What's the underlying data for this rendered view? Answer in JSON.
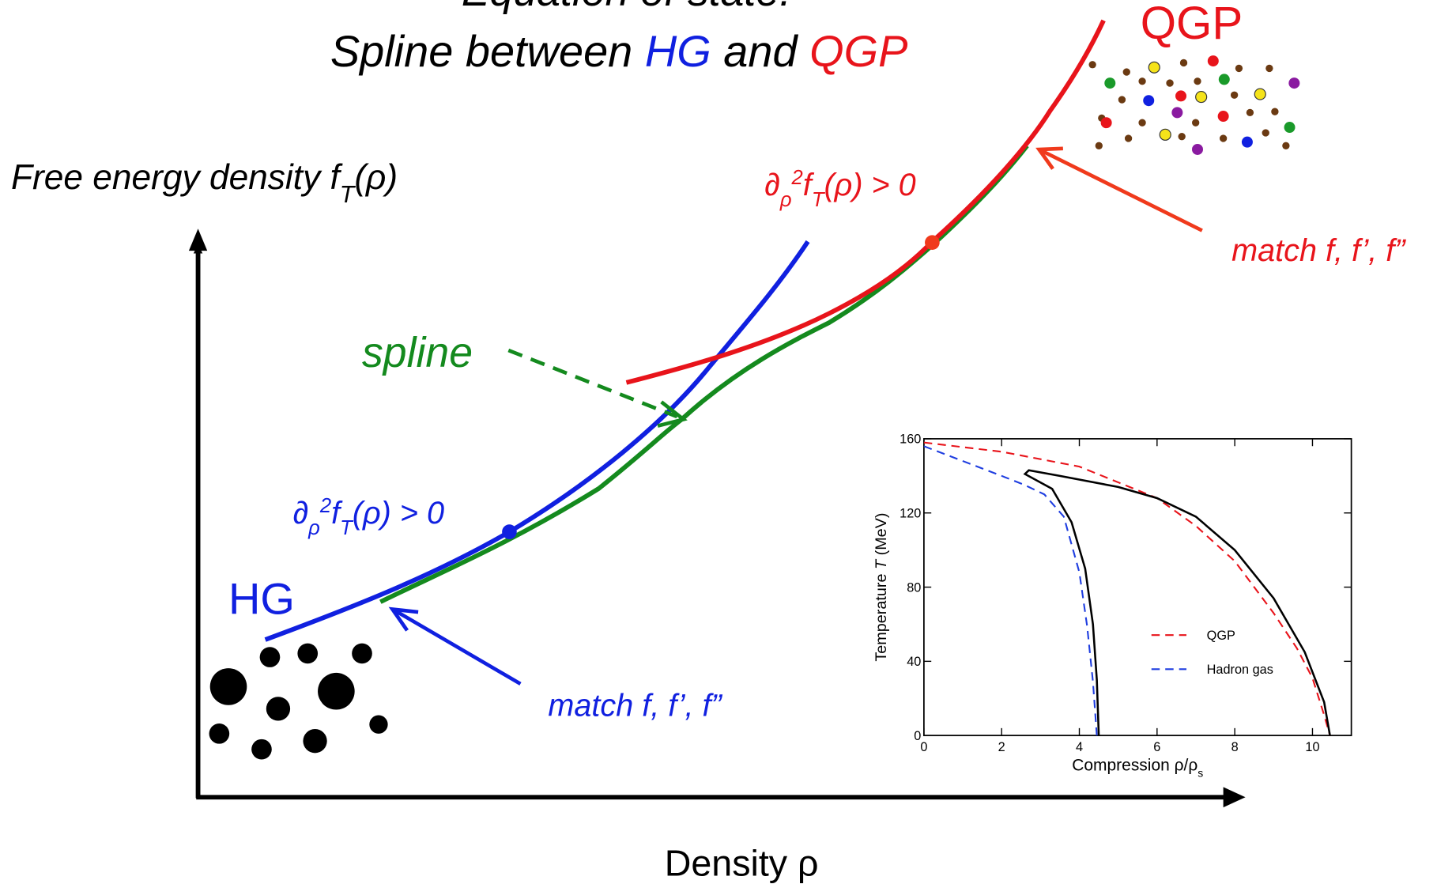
{
  "slide": {
    "title_line1": "Equation of state:",
    "title_line2": [
      "Spline between ",
      "HG",
      " and ",
      "QGP"
    ],
    "y_axis_label": [
      "Free energy density f",
      "T",
      "(ρ)"
    ],
    "x_axis_label": "Density ρ",
    "hg_label": "HG",
    "qgp_label": "QGP",
    "spline_label": "spline",
    "hg_condition": [
      "∂",
      "ρ",
      "2",
      "f",
      "T",
      "(ρ) > 0"
    ],
    "qgp_condition": [
      "∂",
      "ρ",
      "2",
      "f",
      "T",
      "(ρ) > 0"
    ],
    "hg_match": "match f, f’, f”",
    "qgp_match": "match f, f’, f”"
  },
  "chart_data": {
    "type": "line",
    "xlabel": [
      "Compression ρ/ρ",
      "s"
    ],
    "ylabel": [
      "Temperature ",
      "T",
      " (MeV)"
    ],
    "xlim": [
      0,
      11
    ],
    "ylim": [
      0,
      160
    ],
    "xticks": [
      0,
      2,
      4,
      6,
      8,
      10
    ],
    "yticks": [
      0,
      40,
      80,
      120,
      160
    ],
    "series": [
      {
        "name": "QGP",
        "color": "#e8141b",
        "dashed": true,
        "x": [
          0,
          2,
          4,
          6,
          7,
          8,
          9,
          9.6,
          10,
          10.3,
          10.45
        ],
        "values": [
          158,
          153,
          145,
          128,
          113,
          94,
          66,
          47,
          31,
          11,
          0
        ]
      },
      {
        "name": "Hadron gas",
        "color": "#1f3ee0",
        "dashed": true,
        "x": [
          0,
          1,
          2,
          2.6,
          3.1,
          3.6,
          4.0,
          4.2,
          4.35,
          4.45
        ],
        "values": [
          156,
          148,
          140,
          135,
          130,
          118,
          88,
          59,
          29,
          0
        ]
      },
      {
        "color": "#000000",
        "dashed": false,
        "x": [
          4.5,
          4.45,
          4.35,
          4.15,
          3.8,
          3.3,
          2.6,
          2.7,
          3.5,
          5,
          6,
          7,
          8,
          9,
          9.8,
          10.3,
          10.45
        ],
        "values": [
          0,
          30,
          60,
          90,
          115,
          133,
          141,
          143,
          140,
          134,
          128,
          118,
          100,
          74,
          45,
          18,
          0
        ]
      }
    ]
  }
}
